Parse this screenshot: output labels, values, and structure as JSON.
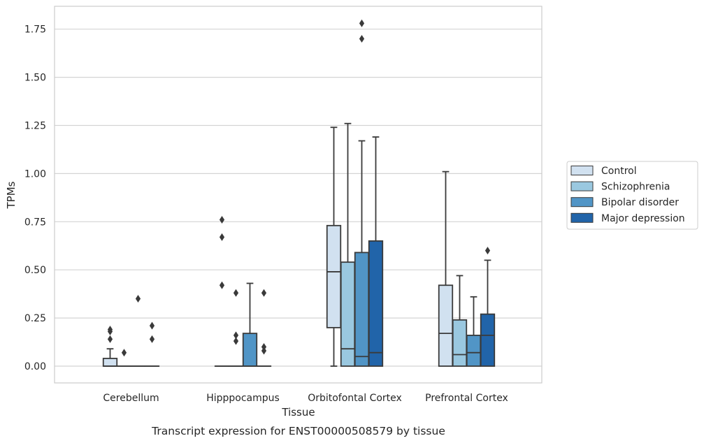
{
  "caption": "Transcript expression for ENST00000508579 by tissue",
  "chart_data": {
    "type": "boxplot",
    "title": "",
    "xlabel": "Tissue",
    "ylabel": "TPMs",
    "ylim": [
      -0.09,
      1.87
    ],
    "yticks": [
      "0.00",
      "0.25",
      "0.50",
      "0.75",
      "1.00",
      "1.25",
      "1.50",
      "1.75"
    ],
    "grid": "horizontal",
    "legend_position": "right",
    "categories": [
      "Cerebellum",
      "Hipppocampus",
      "Orbitofontal Cortex",
      "Prefrontal Cortex"
    ],
    "series": [
      {
        "name": "Control",
        "color": "#d1e1f0",
        "boxes": [
          {
            "whislo": 0.0,
            "q1": 0.0,
            "med": 0.0,
            "q3": 0.04,
            "whishi": 0.09,
            "fliers": [
              0.14,
              0.18,
              0.19
            ]
          },
          {
            "whislo": 0.0,
            "q1": 0.0,
            "med": 0.0,
            "q3": 0.0,
            "whishi": 0.0,
            "fliers": [
              0.42,
              0.67,
              0.76
            ]
          },
          {
            "whislo": 0.0,
            "q1": 0.2,
            "med": 0.49,
            "q3": 0.73,
            "whishi": 1.24,
            "fliers": []
          },
          {
            "whislo": 0.0,
            "q1": 0.0,
            "med": 0.17,
            "q3": 0.42,
            "whishi": 1.01,
            "fliers": []
          }
        ]
      },
      {
        "name": "Schizophrenia",
        "color": "#9ac8e0",
        "boxes": [
          {
            "whislo": 0.0,
            "q1": 0.0,
            "med": 0.0,
            "q3": 0.0,
            "whishi": 0.0,
            "fliers": [
              0.07
            ]
          },
          {
            "whislo": 0.0,
            "q1": 0.0,
            "med": 0.0,
            "q3": 0.0,
            "whishi": 0.0,
            "fliers": [
              0.13,
              0.16,
              0.38
            ]
          },
          {
            "whislo": 0.0,
            "q1": 0.0,
            "med": 0.09,
            "q3": 0.54,
            "whishi": 1.26,
            "fliers": []
          },
          {
            "whislo": 0.0,
            "q1": 0.0,
            "med": 0.06,
            "q3": 0.24,
            "whishi": 0.47,
            "fliers": []
          }
        ]
      },
      {
        "name": "Bipolar disorder",
        "color": "#5195c6",
        "boxes": [
          {
            "whislo": 0.0,
            "q1": 0.0,
            "med": 0.0,
            "q3": 0.0,
            "whishi": 0.0,
            "fliers": [
              0.35
            ]
          },
          {
            "whislo": 0.0,
            "q1": 0.0,
            "med": 0.0,
            "q3": 0.17,
            "whishi": 0.43,
            "fliers": []
          },
          {
            "whislo": 0.0,
            "q1": 0.0,
            "med": 0.05,
            "q3": 0.59,
            "whishi": 1.17,
            "fliers": [
              1.7,
              1.78
            ]
          },
          {
            "whislo": 0.0,
            "q1": 0.0,
            "med": 0.07,
            "q3": 0.16,
            "whishi": 0.36,
            "fliers": []
          }
        ]
      },
      {
        "name": "Major depression",
        "color": "#2164a9",
        "boxes": [
          {
            "whislo": 0.0,
            "q1": 0.0,
            "med": 0.0,
            "q3": 0.0,
            "whishi": 0.0,
            "fliers": [
              0.14,
              0.21
            ]
          },
          {
            "whislo": 0.0,
            "q1": 0.0,
            "med": 0.0,
            "q3": 0.0,
            "whishi": 0.0,
            "fliers": [
              0.08,
              0.1,
              0.38
            ]
          },
          {
            "whislo": 0.0,
            "q1": 0.0,
            "med": 0.07,
            "q3": 0.65,
            "whishi": 1.19,
            "fliers": []
          },
          {
            "whislo": 0.0,
            "q1": 0.0,
            "med": 0.16,
            "q3": 0.27,
            "whishi": 0.55,
            "fliers": [
              0.6
            ]
          }
        ]
      }
    ]
  }
}
